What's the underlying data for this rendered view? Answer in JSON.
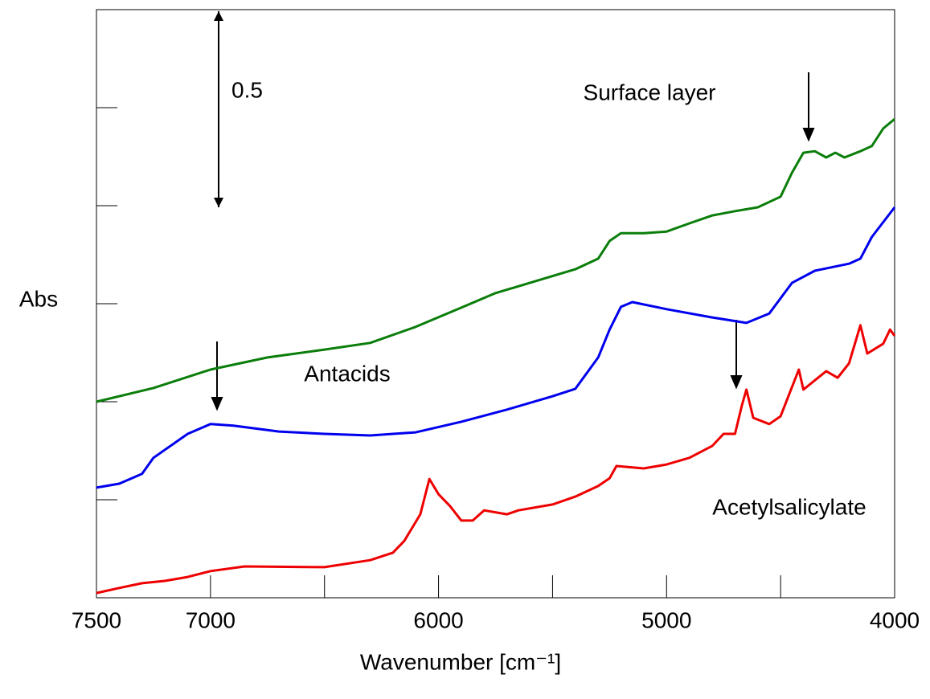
{
  "chart_data": {
    "type": "line",
    "xlabel": "Wavenumber [cm⁻¹]",
    "ylabel": "Abs",
    "xlim": [
      7500,
      4000
    ],
    "xticks": [
      7500,
      7000,
      6000,
      5000,
      4000
    ],
    "xminorticks": [
      6500,
      5500,
      4500
    ],
    "ylim": [
      0,
      1.5
    ],
    "yticks": [
      0.25,
      0.5,
      0.75,
      1.0,
      1.25
    ],
    "show_ytick_labels": false,
    "scale_bar": 0.5,
    "series": [
      {
        "name": "Surface layer",
        "color": "#0a7d0a",
        "x": [
          7500,
          7250,
          7000,
          6750,
          6500,
          6300,
          6100,
          5900,
          5750,
          5600,
          5400,
          5300,
          5250,
          5200,
          5100,
          5000,
          4900,
          4800,
          4700,
          4600,
          4500,
          4450,
          4400,
          4350,
          4300,
          4260,
          4220,
          4150,
          4100,
          4050,
          4000
        ],
        "values": [
          0.5,
          0.535,
          0.582,
          0.613,
          0.633,
          0.65,
          0.691,
          0.74,
          0.777,
          0.803,
          0.838,
          0.865,
          0.91,
          0.93,
          0.93,
          0.934,
          0.955,
          0.975,
          0.986,
          0.996,
          1.023,
          1.084,
          1.135,
          1.139,
          1.123,
          1.135,
          1.123,
          1.139,
          1.152,
          1.197,
          1.221
        ]
      },
      {
        "name": "Antacids",
        "color": "#0000ee",
        "x": [
          7500,
          7400,
          7300,
          7250,
          7100,
          7000,
          6900,
          6700,
          6500,
          6300,
          6100,
          5900,
          5700,
          5500,
          5400,
          5300,
          5250,
          5200,
          5150,
          5000,
          4800,
          4650,
          4550,
          4450,
          4350,
          4200,
          4150,
          4100,
          4000
        ],
        "values": [
          0.281,
          0.291,
          0.316,
          0.357,
          0.418,
          0.443,
          0.439,
          0.424,
          0.418,
          0.414,
          0.422,
          0.449,
          0.48,
          0.514,
          0.533,
          0.613,
          0.684,
          0.742,
          0.754,
          0.736,
          0.715,
          0.701,
          0.725,
          0.803,
          0.834,
          0.852,
          0.865,
          0.92,
          0.996
        ]
      },
      {
        "name": "Acetylsalicylate",
        "color": "#ee0000",
        "x": [
          7500,
          7400,
          7300,
          7200,
          7100,
          7000,
          6850,
          6500,
          6300,
          6200,
          6150,
          6080,
          6040,
          6000,
          5950,
          5900,
          5850,
          5800,
          5700,
          5650,
          5500,
          5400,
          5300,
          5250,
          5220,
          5100,
          5000,
          4900,
          4800,
          4750,
          4700,
          4670,
          4650,
          4620,
          4550,
          4500,
          4420,
          4400,
          4300,
          4250,
          4200,
          4150,
          4120,
          4050,
          4020,
          4000
        ],
        "values": [
          0.012,
          0.025,
          0.037,
          0.043,
          0.053,
          0.068,
          0.08,
          0.078,
          0.096,
          0.115,
          0.145,
          0.213,
          0.303,
          0.264,
          0.234,
          0.197,
          0.197,
          0.223,
          0.213,
          0.223,
          0.238,
          0.258,
          0.285,
          0.305,
          0.336,
          0.33,
          0.34,
          0.357,
          0.387,
          0.418,
          0.418,
          0.49,
          0.531,
          0.459,
          0.443,
          0.463,
          0.582,
          0.531,
          0.578,
          0.561,
          0.598,
          0.695,
          0.623,
          0.648,
          0.684,
          0.668
        ]
      }
    ]
  }
}
